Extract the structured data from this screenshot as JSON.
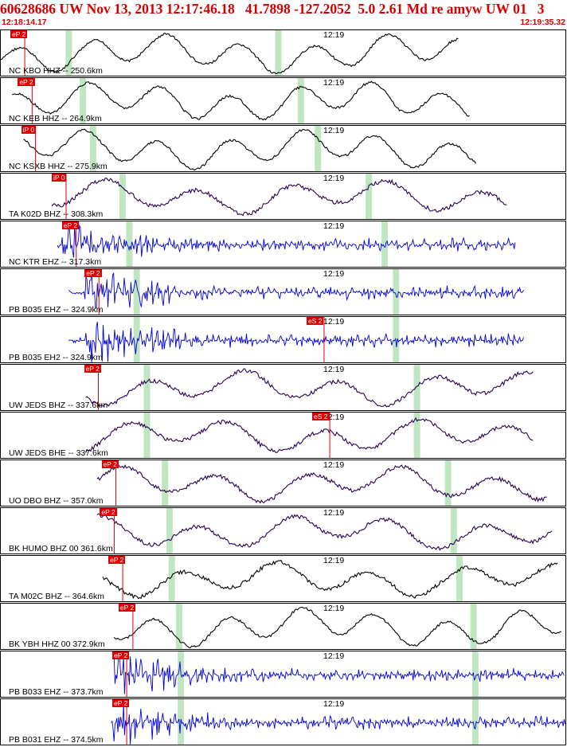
{
  "header": {
    "title": "60628686 UW Nov 13, 2013 12:17:46.18   41.7898 -127.2052  5.0 2.61 Md re amyw UW 01   3",
    "start_time": "12:18:14.17",
    "end_time": "12:19:35.32"
  },
  "colors": {
    "header_red": "#d40000",
    "pick_red": "#e00000",
    "black_trace": "#000000",
    "purple_trace": "#2a0050",
    "blue_trace": "#0000dd",
    "window_green": "#bfe6c0"
  },
  "traces": [
    {
      "label": "NC KBO HHZ -- 250.6km",
      "clock": "12:19",
      "pick": "eP 2",
      "pick_x": 0.017,
      "s_pick": "",
      "s_pick_x": 0,
      "color": "black",
      "green": [
        0.12,
        0.49
      ],
      "trace_start": 0.0,
      "trace_end": 0.81,
      "kind": "long"
    },
    {
      "label": "NC KEB HHZ -- 264.9km",
      "clock": "12:19",
      "pick": "eP 2",
      "pick_x": 0.03,
      "s_pick": "",
      "s_pick_x": 0,
      "color": "black",
      "green": [
        0.145,
        0.53
      ],
      "trace_start": 0.02,
      "trace_end": 0.83,
      "kind": "long"
    },
    {
      "label": "NC KSXB HHZ -- 275.9km",
      "clock": "12:19",
      "pick": "iP 0",
      "pick_x": 0.036,
      "s_pick": "",
      "s_pick_x": 0,
      "color": "black",
      "green": [
        0.163,
        0.56
      ],
      "trace_start": 0.04,
      "trace_end": 0.84,
      "kind": "long"
    },
    {
      "label": "TA K02D BHZ -- 308.3km",
      "clock": "12:19",
      "pick": "iP 0",
      "pick_x": 0.09,
      "s_pick": "",
      "s_pick_x": 0,
      "color": "purple",
      "green": [
        0.215,
        0.65
      ],
      "trace_start": 0.09,
      "trace_end": 0.895,
      "kind": "mid"
    },
    {
      "label": "NC KTR EHZ -- 317.3km",
      "clock": "12:19",
      "pick": "eP 2",
      "pick_x": 0.108,
      "s_pick": "",
      "s_pick_x": 0,
      "color": "blue",
      "green": [
        0.227,
        0.678
      ],
      "trace_start": 0.1,
      "trace_end": 0.91,
      "kind": "burst"
    },
    {
      "label": "PB B035 EHZ -- 324.9km",
      "clock": "12:19",
      "pick": "eP 2",
      "pick_x": 0.148,
      "s_pick": "",
      "s_pick_x": 0,
      "color": "blue",
      "green": [
        0.24,
        0.698
      ],
      "trace_start": 0.12,
      "trace_end": 0.925,
      "kind": "burst"
    },
    {
      "label": "PB B035 EH2 -- 324.9km",
      "clock": "12:19",
      "pick": "",
      "pick_x": 0,
      "s_pick": "eS 2",
      "s_pick_x": 0.54,
      "color": "blue",
      "green": [
        0.24,
        0.698
      ],
      "trace_start": 0.12,
      "trace_end": 0.925,
      "kind": "burst"
    },
    {
      "label": "UW JEDS BHZ -- 337.6km",
      "clock": "12:19",
      "pick": "eP 2",
      "pick_x": 0.147,
      "s_pick": "",
      "s_pick_x": 0,
      "color": "purple",
      "green": [
        0.258,
        0.735
      ],
      "trace_start": 0.15,
      "trace_end": 0.94,
      "kind": "mid"
    },
    {
      "label": "UW JEDS BHE -- 337.6km",
      "clock": "12:19",
      "pick": "",
      "pick_x": 0,
      "s_pick": "eS 2",
      "s_pick_x": 0.55,
      "color": "purple",
      "green": [
        0.258,
        0.735
      ],
      "trace_start": 0.15,
      "trace_end": 0.94,
      "kind": "mid"
    },
    {
      "label": "UO DBO BHZ -- 357.0km",
      "clock": "12:19",
      "pick": "eP 2",
      "pick_x": 0.178,
      "s_pick": "",
      "s_pick_x": 0,
      "color": "purple",
      "green": [
        0.29,
        0.79
      ],
      "trace_start": 0.17,
      "trace_end": 0.965,
      "kind": "mid"
    },
    {
      "label": "BK HUMO BHZ 00 361.6km",
      "clock": "12:19",
      "pick": "eP 2",
      "pick_x": 0.175,
      "s_pick": "",
      "s_pick_x": 0,
      "color": "purple",
      "green": [
        0.298,
        0.8
      ],
      "trace_start": 0.17,
      "trace_end": 0.975,
      "kind": "mid"
    },
    {
      "label": "TA M02C BHZ -- 364.6km",
      "clock": "12:19",
      "pick": "eP 2",
      "pick_x": 0.19,
      "s_pick": "",
      "s_pick_x": 0,
      "color": "black",
      "green": [
        0.302,
        0.81
      ],
      "trace_start": 0.18,
      "trace_end": 0.985,
      "kind": "mid"
    },
    {
      "label": "BK YBH HHZ 00 372.9km",
      "clock": "12:19",
      "pick": "eP 2",
      "pick_x": 0.208,
      "s_pick": "",
      "s_pick_x": 0,
      "color": "black",
      "green": [
        0.315,
        0.835
      ],
      "trace_start": 0.2,
      "trace_end": 0.99,
      "kind": "long"
    },
    {
      "label": "PB B033 EHZ -- 373.7km",
      "clock": "12:19",
      "pick": "eP 2",
      "pick_x": 0.197,
      "s_pick": "",
      "s_pick_x": 0,
      "color": "blue",
      "green": [
        0.318,
        0.838
      ],
      "trace_start": 0.2,
      "trace_end": 0.995,
      "kind": "burst"
    },
    {
      "label": "PB B031 EHZ -- 374.5km",
      "clock": "12:19",
      "pick": "eP 2",
      "pick_x": 0.197,
      "s_pick": "",
      "s_pick_x": 0,
      "color": "blue",
      "green": [
        0.318,
        0.838
      ],
      "trace_start": 0.195,
      "trace_end": 1.0,
      "kind": "burst"
    }
  ]
}
